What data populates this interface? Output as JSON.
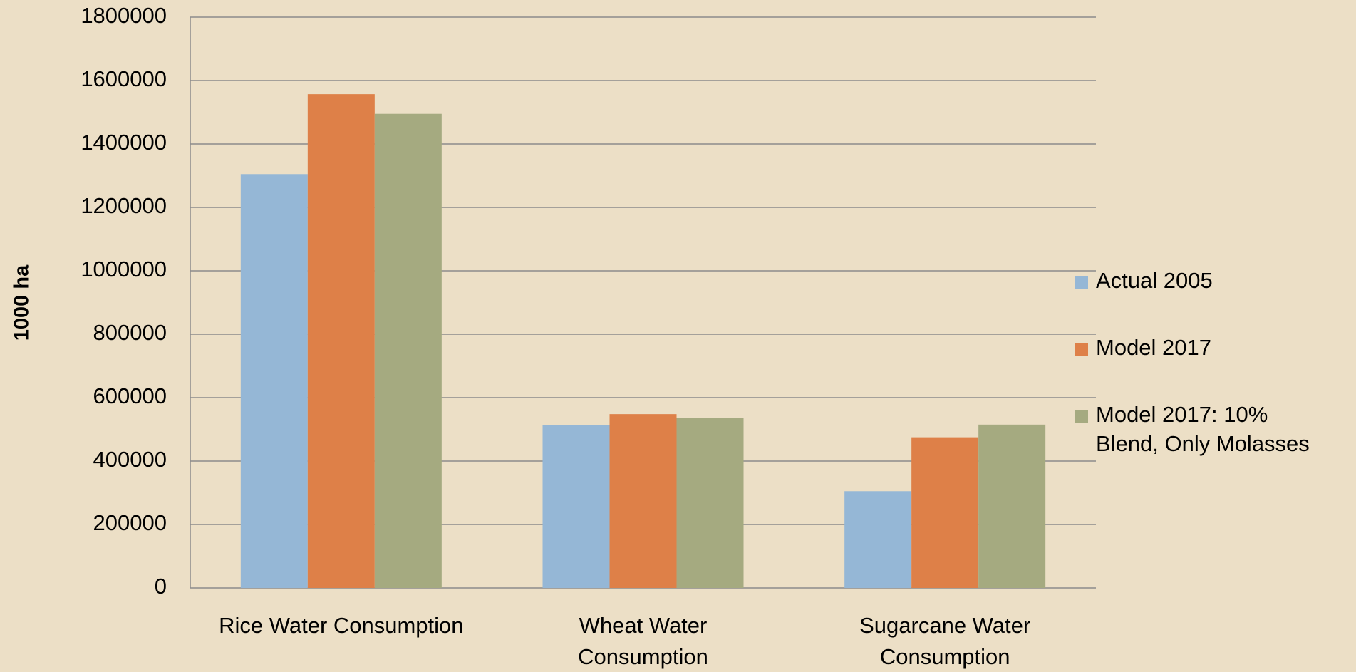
{
  "chart_data": {
    "type": "bar",
    "y_label": "1000 ha",
    "categories": [
      "Rice Water Consumption",
      "Wheat Water Consumption",
      "Sugarcane Water Consumption"
    ],
    "series": [
      {
        "name": "Actual 2005",
        "color": "#95b7d6",
        "values": [
          1305000,
          513000,
          305000
        ]
      },
      {
        "name": "Model 2017",
        "color": "#de8048",
        "values": [
          1557000,
          548000,
          475000
        ]
      },
      {
        "name": "Model 2017: 10% Blend, Only Molasses",
        "color": "#a5aa80",
        "values": [
          1495000,
          537000,
          515000
        ]
      }
    ],
    "ylim": [
      0,
      1800000
    ],
    "yticks": [
      0,
      200000,
      400000,
      600000,
      800000,
      1000000,
      1200000,
      1400000,
      1600000,
      1800000
    ],
    "grid": true,
    "legend": "right"
  }
}
